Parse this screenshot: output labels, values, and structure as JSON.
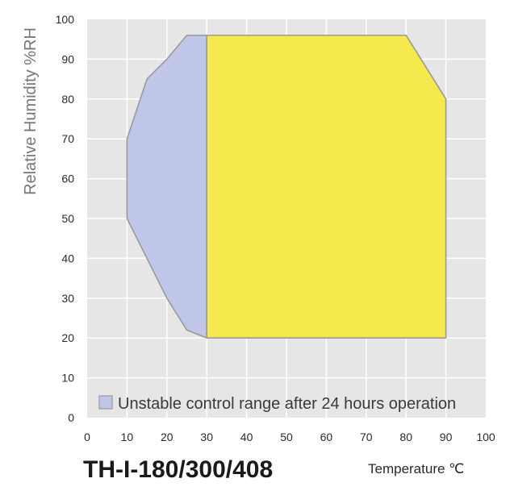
{
  "chart_data": {
    "type": "area",
    "title": "TH-I-180/300/408",
    "xlabel": "Temperature ℃",
    "ylabel": "Relative Humidity %RH",
    "xlim": [
      0,
      100
    ],
    "ylim": [
      0,
      100
    ],
    "x_ticks": [
      "0",
      "10",
      "20",
      "30",
      "40",
      "50",
      "60",
      "70",
      "80",
      "90",
      "100"
    ],
    "y_ticks": [
      "0",
      "10",
      "20",
      "30",
      "40",
      "50",
      "60",
      "70",
      "80",
      "90",
      "100"
    ],
    "grid": true,
    "legend_position": "bottom-left",
    "series": [
      {
        "name": "Unstable control range after 24 hours operation",
        "color": "#c0c6e8",
        "points": [
          [
            25,
            96
          ],
          [
            30,
            96
          ],
          [
            30,
            20
          ],
          [
            25,
            22
          ],
          [
            20,
            30
          ],
          [
            10,
            50
          ],
          [
            10,
            70
          ],
          [
            15,
            85
          ],
          [
            20,
            90
          ]
        ]
      },
      {
        "color": "#f5e94d",
        "points": [
          [
            30,
            96
          ],
          [
            80,
            96
          ],
          [
            90,
            80
          ],
          [
            90,
            20
          ],
          [
            30,
            20
          ]
        ]
      }
    ],
    "colors": {
      "plot_background": "#e6e6e6",
      "grid": "#ffffff",
      "outline": "#9a9a9a"
    }
  }
}
